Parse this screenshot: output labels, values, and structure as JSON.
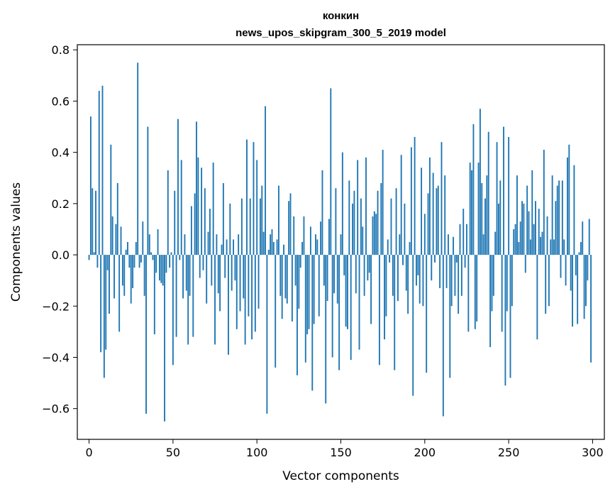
{
  "chart_data": {
    "type": "bar",
    "title_line1": "конкин",
    "title_line2": "news_upos_skipgram_300_5_2019 model",
    "xlabel": "Vector components",
    "ylabel": "Components values",
    "xlim": [
      -7,
      307
    ],
    "ylim": [
      -0.72,
      0.82
    ],
    "xticks": [
      0,
      50,
      100,
      150,
      200,
      250,
      300
    ],
    "xtick_labels": [
      "0",
      "50",
      "100",
      "150",
      "200",
      "250",
      "300"
    ],
    "yticks": [
      -0.6,
      -0.4,
      -0.2,
      0.0,
      0.2,
      0.4,
      0.6,
      0.8
    ],
    "ytick_labels": [
      "−0.6",
      "−0.4",
      "−0.2",
      "0.0",
      "0.2",
      "0.4",
      "0.6",
      "0.8"
    ],
    "bar_color": "#1f77b4",
    "values": [
      -0.02,
      0.54,
      0.26,
      0.01,
      0.25,
      -0.05,
      0.64,
      -0.38,
      0.66,
      -0.48,
      -0.37,
      -0.06,
      -0.23,
      0.43,
      0.15,
      -0.17,
      0.12,
      0.28,
      -0.3,
      0.11,
      -0.12,
      -0.16,
      0.02,
      0.05,
      -0.05,
      -0.19,
      -0.13,
      -0.05,
      0.05,
      0.75,
      -0.05,
      -0.03,
      0.13,
      -0.16,
      -0.62,
      0.5,
      0.08,
      0.01,
      -0.02,
      -0.31,
      -0.07,
      0.1,
      -0.1,
      -0.11,
      -0.12,
      -0.65,
      -0.07,
      0.33,
      -0.05,
      0.01,
      -0.43,
      0.25,
      -0.32,
      0.53,
      -0.02,
      0.37,
      -0.17,
      0.08,
      -0.14,
      -0.35,
      -0.16,
      0.19,
      -0.32,
      0.24,
      0.52,
      0.38,
      -0.09,
      0.34,
      -0.06,
      0.26,
      -0.19,
      0.09,
      0.18,
      -0.12,
      0.36,
      -0.35,
      0.08,
      -0.15,
      -0.22,
      0.04,
      0.28,
      -0.09,
      0.06,
      -0.39,
      0.2,
      -0.14,
      0.06,
      -0.1,
      -0.29,
      0.08,
      -0.22,
      0.22,
      -0.17,
      -0.35,
      0.45,
      -0.24,
      0.22,
      -0.33,
      0.44,
      -0.3,
      0.37,
      -0.21,
      0.22,
      0.27,
      0.09,
      0.58,
      -0.62,
      0.02,
      0.08,
      0.1,
      0.05,
      -0.44,
      0.06,
      0.27,
      -0.16,
      -0.25,
      0.04,
      -0.17,
      -0.19,
      0.21,
      0.24,
      -0.26,
      0.15,
      -0.12,
      -0.47,
      -0.21,
      -0.05,
      0.05,
      0.15,
      -0.42,
      -0.31,
      -0.29,
      0.11,
      -0.53,
      -0.27,
      0.08,
      0.06,
      -0.24,
      0.13,
      0.33,
      -0.12,
      -0.58,
      -0.18,
      0.14,
      0.65,
      -0.4,
      -0.15,
      0.26,
      -0.19,
      -0.45,
      0.08,
      0.4,
      -0.08,
      -0.28,
      -0.29,
      0.29,
      -0.41,
      0.2,
      0.25,
      -0.15,
      0.37,
      -0.37,
      0.22,
      0.11,
      -0.16,
      0.38,
      -0.1,
      -0.07,
      -0.27,
      0.15,
      0.17,
      0.16,
      0.25,
      -0.43,
      0.28,
      0.41,
      -0.33,
      -0.24,
      0.06,
      -0.03,
      0.22,
      -0.16,
      -0.45,
      0.26,
      -0.18,
      0.08,
      0.39,
      -0.04,
      0.2,
      -0.14,
      -0.23,
      0.05,
      0.42,
      -0.55,
      0.46,
      -0.12,
      -0.08,
      -0.19,
      0.34,
      -0.2,
      0.16,
      -0.46,
      0.24,
      0.38,
      -0.1,
      0.32,
      -0.03,
      0.26,
      0.27,
      -0.13,
      0.44,
      -0.63,
      0.31,
      -0.13,
      0.08,
      -0.48,
      -0.2,
      0.07,
      -0.16,
      -0.03,
      -0.23,
      0.12,
      -0.16,
      0.18,
      -0.05,
      0.12,
      -0.3,
      0.36,
      0.33,
      0.51,
      -0.29,
      -0.26,
      0.36,
      0.57,
      0.28,
      0.08,
      0.22,
      0.31,
      0.48,
      -0.36,
      -0.22,
      -0.16,
      0.09,
      0.44,
      0.2,
      0.29,
      -0.3,
      0.5,
      -0.51,
      -0.22,
      0.46,
      -0.48,
      -0.2,
      0.1,
      0.12,
      0.31,
      0.05,
      0.13,
      0.21,
      0.2,
      -0.07,
      0.27,
      0.17,
      0.06,
      0.33,
      0.12,
      0.21,
      -0.33,
      0.18,
      0.07,
      0.09,
      0.41,
      -0.23,
      0.15,
      -0.2,
      0.06,
      0.31,
      0.06,
      0.21,
      0.27,
      0.29,
      -0.09,
      0.29,
      0.06,
      -0.12,
      0.38,
      0.43,
      -0.14,
      -0.28,
      0.35,
      -0.08,
      -0.27,
      0.01,
      0.05,
      0.13,
      -0.25,
      -0.2,
      -0.1,
      0.14,
      -0.42
    ]
  }
}
